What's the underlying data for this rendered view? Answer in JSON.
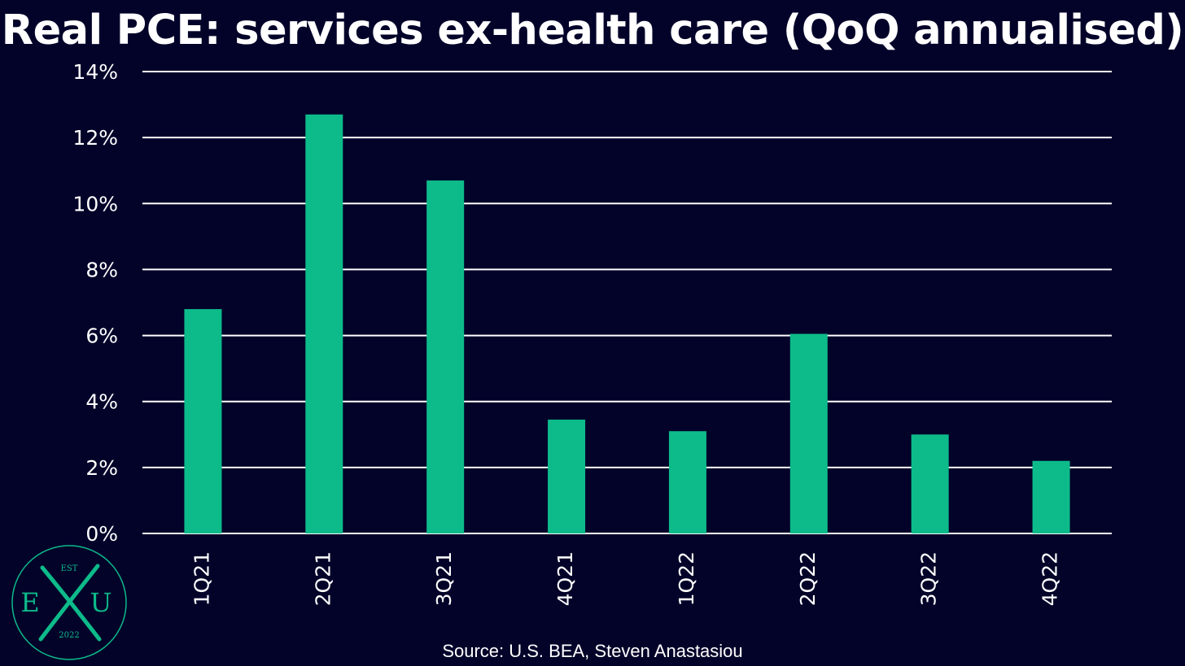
{
  "title": "Real PCE: services ex-health care (QoQ annualised)",
  "source": "Source: U.S. BEA, Steven Anastasiou",
  "logo": {
    "top_text": "EST",
    "left_letter": "E",
    "right_letter": "U",
    "year": "2022",
    "icon": "exu-crossed-logo-icon"
  },
  "colors": {
    "background": "#03032a",
    "bar": "#0dbb8a",
    "grid": "#ffffff",
    "text": "#ffffff",
    "logo": "#0dbb8a"
  },
  "chart_data": {
    "type": "bar",
    "categories": [
      "1Q21",
      "2Q21",
      "3Q21",
      "4Q21",
      "1Q22",
      "2Q22",
      "3Q22",
      "4Q22"
    ],
    "values": [
      6.8,
      12.7,
      10.7,
      3.45,
      3.1,
      6.05,
      3.0,
      2.2
    ],
    "ylim": [
      0,
      14
    ],
    "yticks": [
      "0%",
      "2%",
      "4%",
      "6%",
      "8%",
      "10%",
      "12%",
      "14%"
    ],
    "ytick_values": [
      0,
      2,
      4,
      6,
      8,
      10,
      12,
      14
    ],
    "xlabel": "",
    "ylabel": "",
    "grid": true,
    "legend": "none",
    "x_tick_rotation": "vertical"
  }
}
